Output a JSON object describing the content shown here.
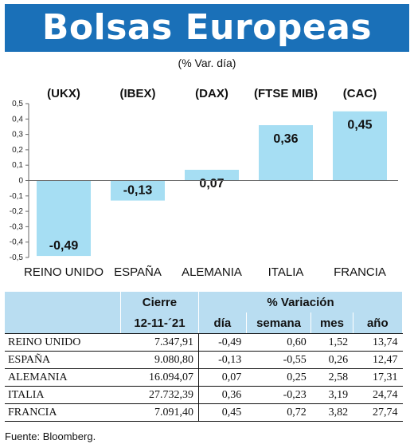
{
  "header": {
    "title": "Bolsas Europeas",
    "subtitle": "(% Var. día)"
  },
  "chart_data": {
    "type": "bar",
    "categories": [
      "REINO UNIDO",
      "ESPAÑA",
      "ALEMANIA",
      "ITALIA",
      "FRANCIA"
    ],
    "index_labels": [
      "(UKX)",
      "(IBEX)",
      "(DAX)",
      "(FTSE MIB)",
      "(CAC)"
    ],
    "values": [
      -0.49,
      -0.13,
      0.07,
      0.36,
      0.45
    ],
    "value_labels": [
      "-0,49",
      "-0,13",
      "0,07",
      "0,36",
      "0,45"
    ],
    "ylim": [
      -0.5,
      0.5
    ],
    "yticks": [
      0.5,
      0.4,
      0.3,
      0.2,
      0.1,
      0,
      -0.1,
      -0.2,
      -0.3,
      -0.4,
      -0.5
    ],
    "ytick_labels": [
      "0,5",
      "0,4",
      "0,3",
      "0,2",
      "0,1",
      "0",
      "-0,1",
      "-0,2",
      "-0,3",
      "-0,4",
      "-0,5"
    ],
    "bar_color": "#a6def3",
    "grid": false
  },
  "table": {
    "group_headers": {
      "cierre": "Cierre",
      "variacion": "% Variación"
    },
    "columns": {
      "date": "12-11-´21",
      "dia": "día",
      "semana": "semana",
      "mes": "mes",
      "ano": "año"
    },
    "rows": [
      {
        "country": "REINO UNIDO",
        "cierre": "7.347,91",
        "dia": "-0,49",
        "semana": "0,60",
        "mes": "1,52",
        "ano": "13,74"
      },
      {
        "country": "ESPAÑA",
        "cierre": "9.080,80",
        "dia": "-0,13",
        "semana": "-0,55",
        "mes": "0,26",
        "ano": "12,47"
      },
      {
        "country": "ALEMANIA",
        "cierre": "16.094,07",
        "dia": "0,07",
        "semana": "0,25",
        "mes": "2,58",
        "ano": "17,31"
      },
      {
        "country": "ITALIA",
        "cierre": "27.732,39",
        "dia": "0,36",
        "semana": "-0,23",
        "mes": "3,19",
        "ano": "24,74"
      },
      {
        "country": "FRANCIA",
        "cierre": "7.091,40",
        "dia": "0,45",
        "semana": "0,72",
        "mes": "3,82",
        "ano": "27,74"
      }
    ]
  },
  "footer": {
    "source": "Fuente: Bloomberg."
  },
  "colors": {
    "title_bg": "#1a70b8",
    "header_bg": "#b9ddf1"
  }
}
